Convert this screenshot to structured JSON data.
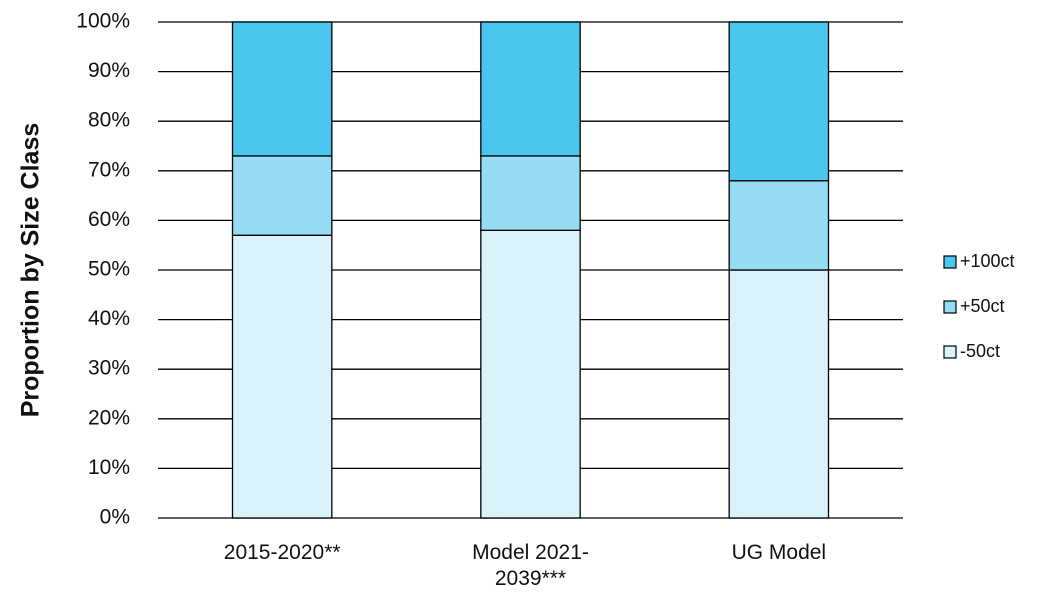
{
  "chart_data": {
    "type": "stacked_bar",
    "ylabel": "Proportion by Size Class",
    "categories": [
      "2015-2020**",
      "Model 2021-2039***",
      "UG Model"
    ],
    "series": [
      {
        "name": "-50ct",
        "color": "#daf2fa",
        "values": [
          57,
          58,
          50
        ]
      },
      {
        "name": "+50ct",
        "color": "#95dcf4",
        "values": [
          16,
          15,
          18
        ]
      },
      {
        "name": "+100ct",
        "color": "#4ac6ef",
        "values": [
          27,
          27,
          32
        ]
      }
    ],
    "ylim": [
      0,
      100
    ],
    "yticks": [
      {
        "value": 0,
        "label": "0%"
      },
      {
        "value": 10,
        "label": "10%"
      },
      {
        "value": 20,
        "label": "20%"
      },
      {
        "value": 30,
        "label": "30%"
      },
      {
        "value": 40,
        "label": "40%"
      },
      {
        "value": 50,
        "label": "50%"
      },
      {
        "value": 60,
        "label": "60%"
      },
      {
        "value": 70,
        "label": "70%"
      },
      {
        "value": 80,
        "label": "80%"
      },
      {
        "value": 90,
        "label": "90%"
      },
      {
        "value": 100,
        "label": "100%"
      }
    ],
    "grid": true,
    "legend": "right"
  }
}
